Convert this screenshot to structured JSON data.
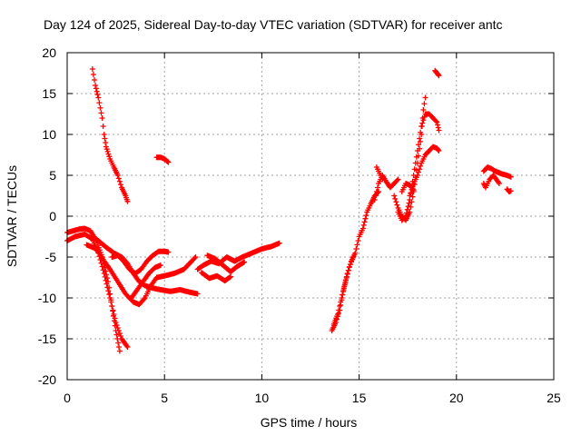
{
  "chart_data": {
    "type": "scatter",
    "title": "Day 124 of 2025, Sidereal Day-to-day VTEC variation (SDTVAR) for receiver antc",
    "xlabel": "GPS time / hours",
    "ylabel": "SDTVAR / TECUs",
    "xlim": [
      0,
      25
    ],
    "ylim": [
      -20,
      20
    ],
    "xticks": [
      0,
      5,
      10,
      15,
      20,
      25
    ],
    "yticks": [
      -20,
      -15,
      -10,
      -5,
      0,
      5,
      10,
      15,
      20
    ],
    "xtick_labels": [
      "0",
      "5",
      "10",
      "15",
      "20",
      "25"
    ],
    "ytick_labels": [
      "-20",
      "-15",
      "-10",
      "-5",
      "0",
      "5",
      "10",
      "15",
      "20"
    ],
    "grid": true,
    "marker": "+",
    "series": [
      {
        "name": "SDTVAR",
        "color": "#ff0000",
        "tracks": [
          [
            [
              1.3,
              18.0
            ],
            [
              1.45,
              16.0
            ],
            [
              1.6,
              14.5
            ],
            [
              1.8,
              12.0
            ],
            [
              1.9,
              10.0
            ],
            [
              2.0,
              8.5
            ],
            [
              2.2,
              7.0
            ],
            [
              2.4,
              6.0
            ],
            [
              2.6,
              5.0
            ],
            [
              2.8,
              3.5
            ],
            [
              3.0,
              2.5
            ],
            [
              3.1,
              1.8
            ]
          ],
          [
            [
              4.6,
              7.2
            ],
            [
              4.8,
              7.2
            ],
            [
              5.0,
              7.0
            ],
            [
              5.2,
              6.6
            ]
          ],
          [
            [
              0.0,
              -2.0
            ],
            [
              0.3,
              -1.8
            ],
            [
              0.6,
              -1.6
            ],
            [
              0.9,
              -1.5
            ],
            [
              1.2,
              -1.8
            ],
            [
              1.5,
              -3.0
            ],
            [
              1.8,
              -5.0
            ],
            [
              2.1,
              -8.0
            ],
            [
              2.3,
              -11.0
            ],
            [
              2.5,
              -14.0
            ],
            [
              2.7,
              -16.5
            ]
          ],
          [
            [
              0.0,
              -3.0
            ],
            [
              0.4,
              -2.5
            ],
            [
              0.9,
              -2.2
            ],
            [
              1.3,
              -2.8
            ],
            [
              1.6,
              -4.5
            ],
            [
              1.9,
              -7.0
            ],
            [
              2.2,
              -10.0
            ],
            [
              2.5,
              -13.0
            ],
            [
              2.8,
              -15.0
            ],
            [
              3.1,
              -16.0
            ]
          ],
          [
            [
              1.0,
              -3.5
            ],
            [
              1.5,
              -4.0
            ],
            [
              1.9,
              -5.5
            ],
            [
              2.2,
              -6.5
            ],
            [
              2.6,
              -8.0
            ],
            [
              3.0,
              -9.5
            ],
            [
              3.4,
              -10.5
            ],
            [
              3.7,
              -10.8
            ],
            [
              4.0,
              -10.0
            ],
            [
              4.3,
              -8.5
            ],
            [
              4.6,
              -7.5
            ],
            [
              5.0,
              -7.3
            ],
            [
              5.5,
              -7.0
            ],
            [
              6.0,
              -6.5
            ],
            [
              6.4,
              -5.5
            ],
            [
              6.6,
              -5.0
            ]
          ],
          [
            [
              1.5,
              -2.8
            ],
            [
              2.0,
              -3.8
            ],
            [
              2.4,
              -4.5
            ],
            [
              2.8,
              -5.0
            ],
            [
              3.1,
              -5.8
            ],
            [
              3.4,
              -7.0
            ],
            [
              3.7,
              -8.0
            ],
            [
              4.0,
              -8.5
            ],
            [
              4.4,
              -8.8
            ],
            [
              4.8,
              -9.0
            ],
            [
              5.3,
              -9.2
            ],
            [
              5.8,
              -9.0
            ],
            [
              6.3,
              -9.3
            ],
            [
              6.7,
              -9.5
            ]
          ],
          [
            [
              2.3,
              -5.0
            ],
            [
              2.6,
              -4.8
            ],
            [
              2.9,
              -5.5
            ],
            [
              3.2,
              -6.5
            ],
            [
              3.5,
              -7.0
            ],
            [
              3.8,
              -6.5
            ],
            [
              4.1,
              -5.5
            ],
            [
              4.4,
              -4.8
            ],
            [
              4.7,
              -4.3
            ],
            [
              5.0,
              -4.3
            ],
            [
              5.2,
              -4.4
            ]
          ],
          [
            [
              3.3,
              -10.0
            ],
            [
              3.6,
              -9.0
            ],
            [
              3.9,
              -8.0
            ],
            [
              4.2,
              -7.0
            ],
            [
              4.5,
              -6.3
            ],
            [
              4.8,
              -6.0
            ]
          ],
          [
            [
              6.7,
              -6.5
            ],
            [
              7.0,
              -6.0
            ],
            [
              7.4,
              -5.5
            ],
            [
              7.8,
              -5.8
            ],
            [
              8.2,
              -5.0
            ],
            [
              8.6,
              -5.5
            ],
            [
              9.0,
              -5.0
            ],
            [
              9.5,
              -4.5
            ],
            [
              10.0,
              -4.0
            ],
            [
              10.5,
              -3.7
            ],
            [
              10.9,
              -3.3
            ]
          ],
          [
            [
              7.2,
              -4.8
            ],
            [
              7.6,
              -5.2
            ],
            [
              8.0,
              -6.0
            ],
            [
              8.4,
              -6.8
            ],
            [
              8.7,
              -6.2
            ],
            [
              9.1,
              -5.6
            ]
          ],
          [
            [
              6.9,
              -6.9
            ],
            [
              7.3,
              -7.6
            ],
            [
              7.7,
              -7.3
            ],
            [
              8.1,
              -7.9
            ],
            [
              8.4,
              -7.4
            ]
          ],
          [
            [
              13.6,
              -14.0
            ],
            [
              13.8,
              -13.0
            ],
            [
              14.0,
              -11.5
            ],
            [
              14.2,
              -9.0
            ],
            [
              14.4,
              -7.0
            ],
            [
              14.6,
              -5.5
            ],
            [
              14.8,
              -4.5
            ],
            [
              15.0,
              -2.5
            ],
            [
              15.2,
              -1.5
            ],
            [
              15.4,
              0.5
            ],
            [
              15.6,
              1.5
            ],
            [
              15.8,
              2.5
            ],
            [
              16.0,
              3.0
            ]
          ],
          [
            [
              13.7,
              -13.2
            ],
            [
              13.9,
              -12.0
            ],
            [
              14.1,
              -10.0
            ],
            [
              14.3,
              -8.0
            ],
            [
              14.5,
              -6.2
            ],
            [
              14.7,
              -5.0
            ]
          ],
          [
            [
              15.8,
              2.0
            ],
            [
              16.0,
              4.0
            ],
            [
              16.2,
              5.0
            ],
            [
              16.4,
              4.2
            ],
            [
              16.6,
              3.5
            ],
            [
              16.8,
              4.0
            ],
            [
              17.0,
              4.5
            ]
          ],
          [
            [
              15.9,
              6.0
            ],
            [
              16.0,
              5.5
            ],
            [
              16.2,
              4.5
            ]
          ],
          [
            [
              16.8,
              2.5
            ],
            [
              17.0,
              1.0
            ],
            [
              17.2,
              0.0
            ],
            [
              17.4,
              -0.5
            ],
            [
              17.6,
              0.5
            ],
            [
              17.8,
              3.0
            ],
            [
              18.0,
              6.5
            ],
            [
              18.2,
              10.0
            ],
            [
              18.3,
              13.0
            ],
            [
              18.4,
              14.5
            ]
          ],
          [
            [
              17.0,
              0.5
            ],
            [
              17.2,
              -0.5
            ],
            [
              17.4,
              0.0
            ],
            [
              17.6,
              2.0
            ],
            [
              17.8,
              5.0
            ],
            [
              18.0,
              8.0
            ],
            [
              18.2,
              11.0
            ],
            [
              18.4,
              12.5
            ],
            [
              18.6,
              12.5
            ],
            [
              18.8,
              12.0
            ],
            [
              19.0,
              11.5
            ],
            [
              19.1,
              10.5
            ]
          ],
          [
            [
              17.6,
              2.5
            ],
            [
              17.8,
              4.0
            ],
            [
              18.0,
              5.0
            ],
            [
              18.2,
              6.5
            ],
            [
              18.4,
              7.5
            ],
            [
              18.6,
              8.0
            ],
            [
              18.8,
              8.5
            ],
            [
              19.0,
              8.3
            ],
            [
              19.1,
              8.0
            ]
          ],
          [
            [
              17.2,
              3.0
            ],
            [
              17.4,
              4.0
            ],
            [
              17.6,
              3.8
            ],
            [
              17.8,
              3.2
            ]
          ],
          [
            [
              18.9,
              17.8
            ],
            [
              19.0,
              17.5
            ],
            [
              19.1,
              17.2
            ]
          ],
          [
            [
              21.4,
              5.5
            ],
            [
              21.6,
              6.0
            ],
            [
              21.8,
              5.8
            ],
            [
              22.0,
              5.5
            ],
            [
              22.3,
              5.2
            ],
            [
              22.6,
              5.0
            ],
            [
              22.8,
              4.8
            ]
          ],
          [
            [
              21.4,
              4.0
            ],
            [
              21.5,
              3.5
            ],
            [
              21.7,
              4.5
            ],
            [
              21.9,
              5.0
            ],
            [
              22.2,
              4.0
            ]
          ],
          [
            [
              22.6,
              3.3
            ],
            [
              22.7,
              3.0
            ],
            [
              22.8,
              3.1
            ]
          ]
        ]
      }
    ]
  }
}
